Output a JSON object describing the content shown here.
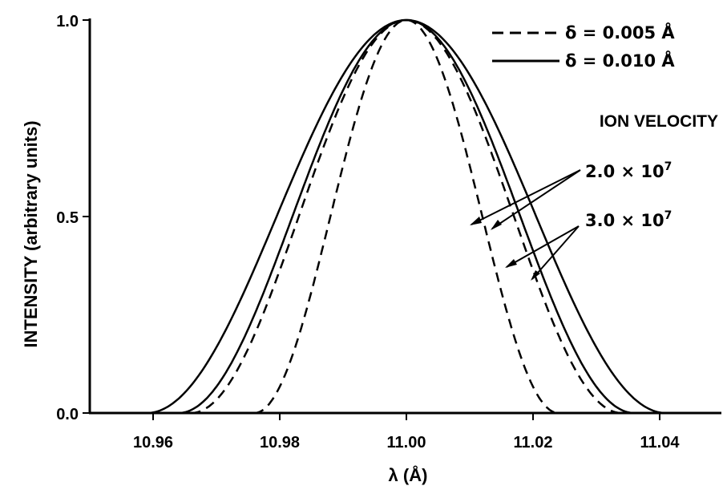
{
  "chart_data": {
    "type": "line",
    "xlabel": "λ (Å)",
    "ylabel": "INTENSITY (arbitrary units)",
    "xlim": [
      10.95,
      11.05
    ],
    "ylim": [
      0.0,
      1.0
    ],
    "x_ticks": [
      10.96,
      10.98,
      11.0,
      11.02,
      11.04
    ],
    "x_tick_labels": [
      "10.96",
      "10.98",
      "11.00",
      "11.02",
      "11.04"
    ],
    "y_ticks": [
      0.0,
      0.5,
      1.0
    ],
    "y_tick_labels": [
      "0.0",
      "0.5",
      "1.0"
    ],
    "legend": {
      "placement": "top-right",
      "entries": [
        {
          "label": "δ = 0.005 Å",
          "style": "dashed"
        },
        {
          "label": "δ = 0.010 Å",
          "style": "solid"
        }
      ]
    },
    "annotations": {
      "title": "ION VELOCITY",
      "labels": [
        {
          "base": "2.0 × 10",
          "exponent": "7"
        },
        {
          "base": "3.0 × 10",
          "exponent": "7"
        }
      ]
    },
    "series": [
      {
        "style": "dashed",
        "center": 11.0,
        "half_width_at_zero": 0.024,
        "x": [
          10.976,
          10.98,
          10.985,
          10.99,
          10.995,
          11.0,
          11.005,
          11.01,
          11.015,
          11.02,
          11.024
        ],
        "y": [
          0.0,
          0.04,
          0.22,
          0.57,
          0.88,
          1.0,
          0.88,
          0.57,
          0.22,
          0.04,
          0.0
        ]
      },
      {
        "style": "dashed",
        "center": 11.0,
        "half_width_at_zero": 0.034,
        "x": [
          10.966,
          10.97,
          10.98,
          10.985,
          10.99,
          10.995,
          11.0,
          11.005,
          11.01,
          11.015,
          11.02,
          11.03,
          11.034
        ],
        "y": [
          0.0,
          0.01,
          0.14,
          0.36,
          0.65,
          0.9,
          1.0,
          0.9,
          0.65,
          0.36,
          0.14,
          0.01,
          0.0
        ]
      },
      {
        "style": "solid",
        "center": 11.0,
        "half_width_at_zero": 0.036,
        "x": [
          10.964,
          10.97,
          10.98,
          10.985,
          10.99,
          10.995,
          11.0,
          11.005,
          11.01,
          11.015,
          11.02,
          11.03,
          11.036
        ],
        "y": [
          0.0,
          0.02,
          0.17,
          0.39,
          0.68,
          0.92,
          1.0,
          0.92,
          0.68,
          0.39,
          0.17,
          0.02,
          0.0
        ]
      },
      {
        "style": "solid",
        "center": 11.0,
        "half_width_at_zero": 0.041,
        "x": [
          10.959,
          10.97,
          10.98,
          10.985,
          10.99,
          10.995,
          11.0,
          11.005,
          11.01,
          11.015,
          11.02,
          11.03,
          11.041
        ],
        "y": [
          0.0,
          0.06,
          0.27,
          0.5,
          0.76,
          0.95,
          1.0,
          0.95,
          0.76,
          0.5,
          0.27,
          0.06,
          0.0
        ]
      }
    ]
  }
}
